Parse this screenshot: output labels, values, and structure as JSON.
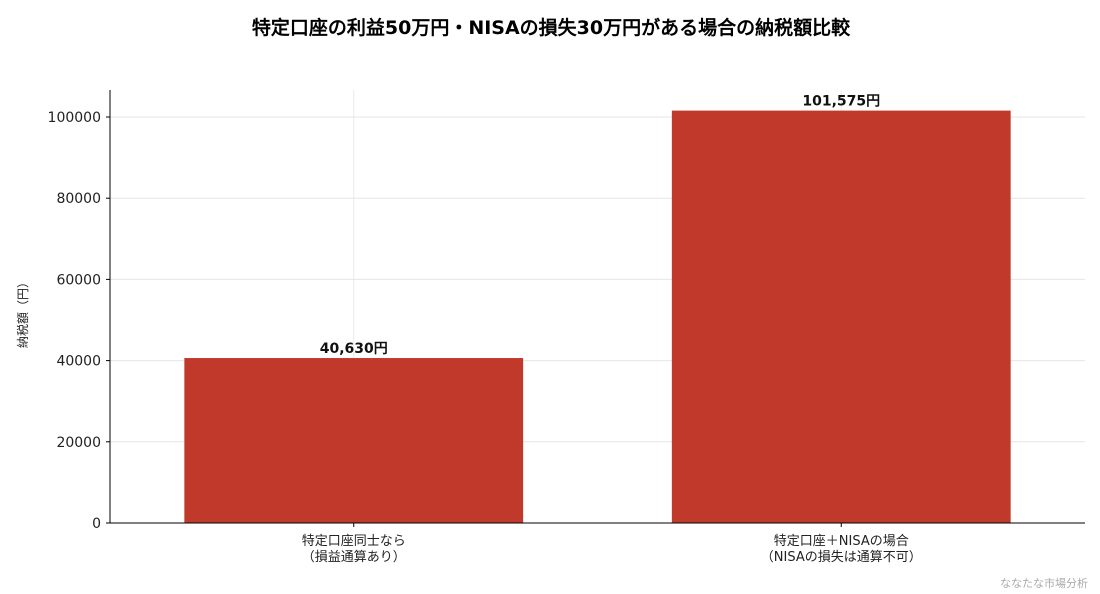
{
  "chart_data": {
    "type": "bar",
    "title": "特定口座の利益50万円・NISAの損失30万円がある場合の納税額比較",
    "ylabel": "納税額（円）",
    "xlabel": "",
    "categories": [
      [
        "特定口座同士なら",
        "（損益通算あり）"
      ],
      [
        "特定口座＋NISAの場合",
        "（NISAの損失は通算不可）"
      ]
    ],
    "values": [
      40630,
      101575
    ],
    "value_labels": [
      "40,630円",
      "101,575円"
    ],
    "ylim": [
      0,
      106650
    ],
    "yticks": [
      0,
      20000,
      40000,
      60000,
      80000,
      100000
    ],
    "grid": true,
    "legend": "none",
    "bar_color": "#c0392b"
  },
  "watermark": "ななたな市場分析"
}
